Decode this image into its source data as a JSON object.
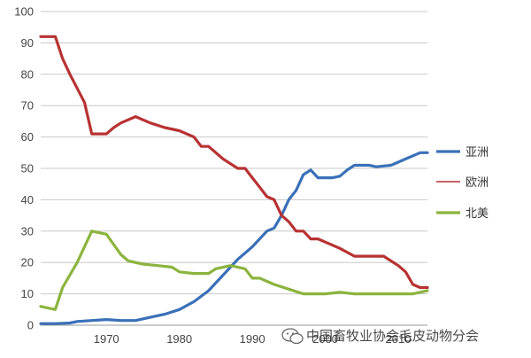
{
  "chart_data": {
    "type": "line",
    "title": "",
    "xlabel": "",
    "ylabel": "",
    "xlim": [
      1961,
      2014
    ],
    "ylim": [
      0,
      100
    ],
    "x_ticks": [
      1970,
      1980,
      1990,
      2000,
      2010
    ],
    "y_ticks": [
      0,
      10,
      20,
      30,
      40,
      50,
      60,
      70,
      80,
      90,
      100
    ],
    "grid": "horizontal",
    "legend_position": "right",
    "series": [
      {
        "name": "亚洲",
        "color": "#3a70b8",
        "points": [
          [
            1961,
            0.5
          ],
          [
            1963,
            0.5
          ],
          [
            1965,
            0.7
          ],
          [
            1966,
            1.2
          ],
          [
            1968,
            1.5
          ],
          [
            1970,
            1.8
          ],
          [
            1972,
            1.5
          ],
          [
            1974,
            1.5
          ],
          [
            1976,
            2.5
          ],
          [
            1978,
            3.5
          ],
          [
            1980,
            5
          ],
          [
            1982,
            7.5
          ],
          [
            1984,
            11
          ],
          [
            1986,
            16
          ],
          [
            1988,
            21
          ],
          [
            1990,
            25
          ],
          [
            1992,
            30
          ],
          [
            1993,
            31
          ],
          [
            1994,
            35
          ],
          [
            1995,
            40
          ],
          [
            1996,
            43
          ],
          [
            1997,
            48
          ],
          [
            1998,
            49.5
          ],
          [
            1999,
            47
          ],
          [
            2001,
            47
          ],
          [
            2002,
            47.5
          ],
          [
            2003,
            49.5
          ],
          [
            2004,
            51
          ],
          [
            2006,
            51
          ],
          [
            2007,
            50.5
          ],
          [
            2009,
            51
          ],
          [
            2011,
            53
          ],
          [
            2013,
            55
          ],
          [
            2014,
            55
          ]
        ]
      },
      {
        "name": "欧洲",
        "color": "#b83232",
        "points": [
          [
            1961,
            92
          ],
          [
            1963,
            92
          ],
          [
            1964,
            85
          ],
          [
            1965,
            80
          ],
          [
            1967,
            71
          ],
          [
            1968,
            61
          ],
          [
            1970,
            61
          ],
          [
            1971,
            63
          ],
          [
            1972,
            64.5
          ],
          [
            1974,
            66.5
          ],
          [
            1976,
            64.5
          ],
          [
            1978,
            63
          ],
          [
            1980,
            62
          ],
          [
            1982,
            60
          ],
          [
            1983,
            57
          ],
          [
            1984,
            57
          ],
          [
            1986,
            53
          ],
          [
            1988,
            50
          ],
          [
            1989,
            50
          ],
          [
            1990,
            47
          ],
          [
            1991,
            44
          ],
          [
            1992,
            41
          ],
          [
            1993,
            40
          ],
          [
            1994,
            35
          ],
          [
            1995,
            33
          ],
          [
            1996,
            30
          ],
          [
            1997,
            30
          ],
          [
            1998,
            27.5
          ],
          [
            1999,
            27.5
          ],
          [
            2000,
            26.5
          ],
          [
            2002,
            24.5
          ],
          [
            2004,
            22
          ],
          [
            2008,
            22
          ],
          [
            2010,
            19
          ],
          [
            2011,
            17
          ],
          [
            2012,
            13
          ],
          [
            2013,
            12
          ],
          [
            2014,
            12
          ]
        ]
      },
      {
        "name": "北美",
        "color": "#8cb43e",
        "points": [
          [
            1961,
            6
          ],
          [
            1963,
            5
          ],
          [
            1964,
            12
          ],
          [
            1966,
            20
          ],
          [
            1968,
            30
          ],
          [
            1970,
            29
          ],
          [
            1972,
            22.5
          ],
          [
            1973,
            20.5
          ],
          [
            1975,
            19.5
          ],
          [
            1977,
            19
          ],
          [
            1979,
            18.5
          ],
          [
            1980,
            17
          ],
          [
            1982,
            16.5
          ],
          [
            1984,
            16.5
          ],
          [
            1985,
            18
          ],
          [
            1987,
            19
          ],
          [
            1989,
            18
          ],
          [
            1990,
            15
          ],
          [
            1991,
            15
          ],
          [
            1993,
            13
          ],
          [
            1995,
            11.5
          ],
          [
            1997,
            10
          ],
          [
            2000,
            10
          ],
          [
            2002,
            10.5
          ],
          [
            2004,
            10
          ],
          [
            2009,
            10
          ],
          [
            2012,
            10
          ],
          [
            2014,
            11
          ]
        ]
      }
    ]
  },
  "watermark": {
    "text": "中国畜牧业协会毛皮动物分会",
    "icon": "wechat-icon"
  }
}
